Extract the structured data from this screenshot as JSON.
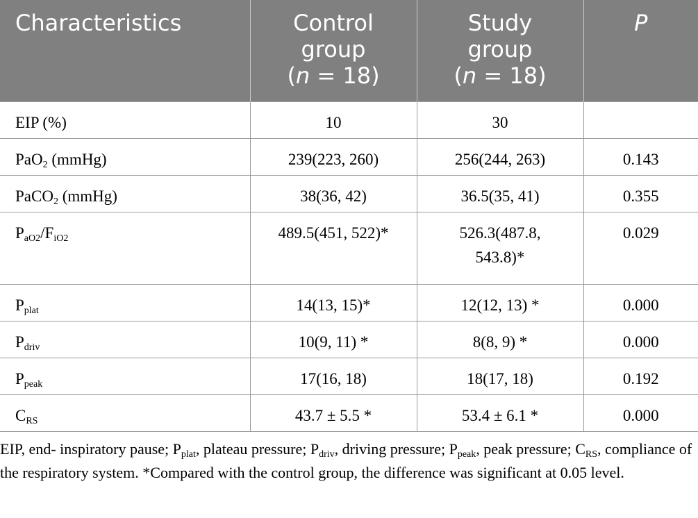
{
  "header": {
    "characteristics": "Characteristics",
    "control_line1": "Control",
    "control_line2": "group",
    "control_n_var": "n",
    "control_n_rest": " = 18)",
    "study_line1": "Study",
    "study_line2": "group",
    "study_n_var": "n",
    "study_n_rest": " = 18)",
    "p": "P"
  },
  "rows": [
    {
      "label_main": "EIP (%)",
      "control": "10",
      "study": "30",
      "p": ""
    },
    {
      "label_main": "PaO",
      "label_sub": "2",
      "label_rest": " (mmHg)",
      "control": "239(223, 260)",
      "study": "256(244, 263)",
      "p": "0.143"
    },
    {
      "label_main": "PaCO",
      "label_sub": "2",
      "label_rest": " (mmHg)",
      "control": "38(36, 42)",
      "study": "36.5(35, 41)",
      "p": "0.355"
    },
    {
      "label_main": "P",
      "label_sub": "aO2",
      "label_mid": "/F",
      "label_sub2": "iO2",
      "control": "489.5(451, 522)*",
      "study_line1": "526.3(487.8,",
      "study_line2": "543.8)*",
      "p": "0.029"
    },
    {
      "label_main": "P",
      "label_sub": "plat",
      "control": "14(13, 15)*",
      "study": "12(12, 13) *",
      "p": "0.000"
    },
    {
      "label_main": "P",
      "label_sub": "driv",
      "control": "10(9, 11) *",
      "study": "8(8, 9) *",
      "p": "0.000"
    },
    {
      "label_main": "P",
      "label_sub": "peak",
      "control": "17(16, 18)",
      "study": "18(17, 18)",
      "p": "0.192"
    },
    {
      "label_main": "C",
      "label_sub": "RS",
      "control": "43.7 ± 5.5 *",
      "study": "53.4 ± 6.1 *",
      "p": "0.000"
    }
  ],
  "footnote": {
    "t1": "EIP, end- inspiratory pause; P",
    "s1": "plat",
    "t2": ", plateau pressure; P",
    "s2": "driv",
    "t3": ", driving pressure; P",
    "s3": "peak",
    "t4": ", peak pressure; C",
    "s4": "RS",
    "t5": ", compliance of the respiratory system. *Compared with the control group, the difference was significant at 0.05 level."
  }
}
